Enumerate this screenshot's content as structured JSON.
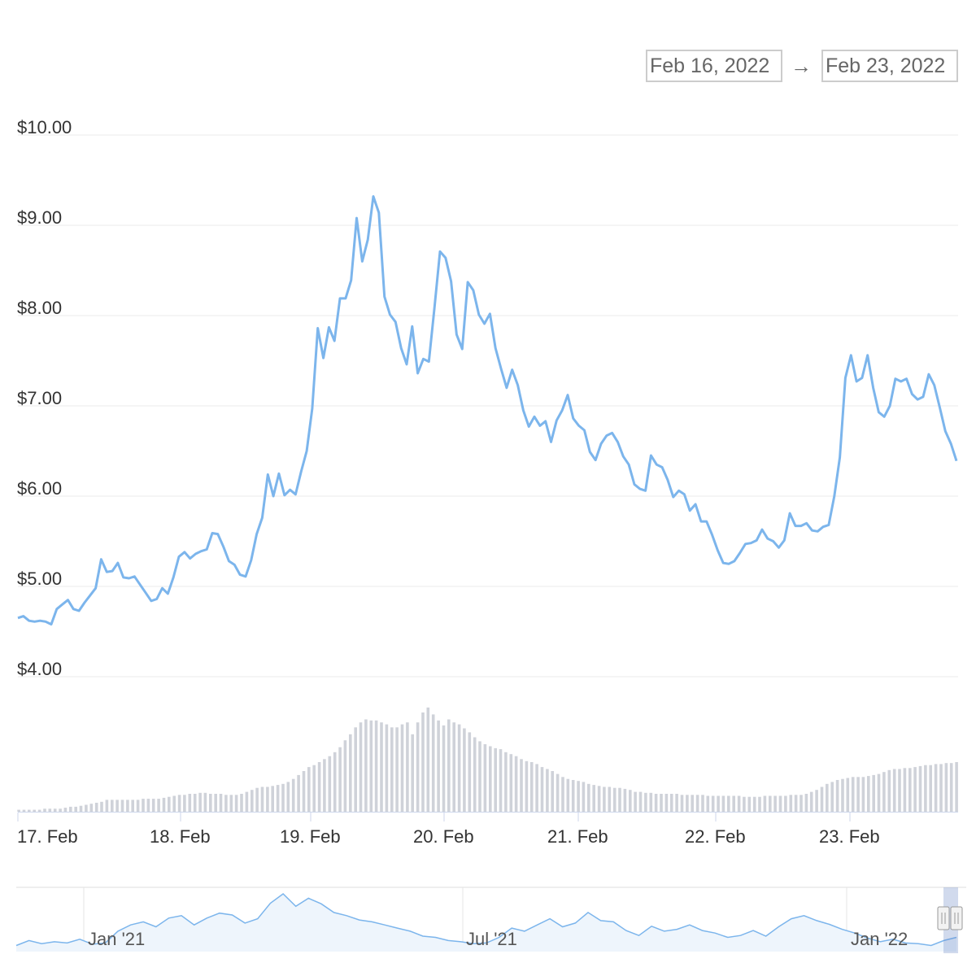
{
  "range": {
    "from": "Feb 16, 2022",
    "separator": "→",
    "to": "Feb 23, 2022"
  },
  "chart_data": {
    "type": "line",
    "y_axis": {
      "labels": [
        "$10.00",
        "$9.00",
        "$8.00",
        "$7.00",
        "$6.00",
        "$5.00",
        "$4.00"
      ],
      "ylim": [
        4,
        10
      ],
      "grid": true
    },
    "x_axis": {
      "labels": [
        "17. Feb",
        "18. Feb",
        "19. Feb",
        "20. Feb",
        "21. Feb",
        "22. Feb",
        "23. Feb"
      ]
    },
    "price_series": {
      "x_range": [
        "2022-02-16T21:00",
        "2022-02-23T20:00"
      ],
      "values": [
        4.65,
        4.67,
        4.62,
        4.61,
        4.62,
        4.61,
        4.58,
        4.75,
        4.8,
        4.85,
        4.75,
        4.73,
        4.82,
        4.9,
        4.98,
        5.3,
        5.16,
        5.17,
        5.26,
        5.1,
        5.09,
        5.11,
        5.02,
        4.93,
        4.84,
        4.86,
        4.98,
        4.92,
        5.1,
        5.33,
        5.38,
        5.31,
        5.36,
        5.39,
        5.41,
        5.59,
        5.58,
        5.44,
        5.28,
        5.24,
        5.13,
        5.11,
        5.29,
        5.58,
        5.76,
        6.24,
        6.0,
        6.25,
        6.01,
        6.07,
        6.02,
        6.27,
        6.5,
        6.97,
        7.86,
        7.53,
        7.87,
        7.72,
        8.19,
        8.19,
        8.39,
        9.08,
        8.6,
        8.84,
        9.32,
        9.14,
        8.21,
        8.01,
        7.93,
        7.64,
        7.46,
        7.88,
        7.36,
        7.52,
        7.49,
        8.08,
        8.71,
        8.64,
        8.38,
        7.79,
        7.63,
        8.37,
        8.28,
        8.01,
        7.91,
        8.02,
        7.64,
        7.41,
        7.2,
        7.4,
        7.23,
        6.95,
        6.77,
        6.88,
        6.78,
        6.83,
        6.6,
        6.84,
        6.95,
        7.12,
        6.86,
        6.78,
        6.73,
        6.49,
        6.4,
        6.58,
        6.67,
        6.7,
        6.6,
        6.44,
        6.35,
        6.13,
        6.08,
        6.06,
        6.45,
        6.35,
        6.32,
        6.18,
        5.99,
        6.06,
        6.02,
        5.84,
        5.91,
        5.72,
        5.72,
        5.57,
        5.4,
        5.26,
        5.25,
        5.28,
        5.37,
        5.47,
        5.48,
        5.51,
        5.63,
        5.53,
        5.5,
        5.43,
        5.51,
        5.81,
        5.67,
        5.67,
        5.7,
        5.62,
        5.61,
        5.66,
        5.68,
        6.0,
        6.43,
        7.31,
        7.56,
        7.27,
        7.31,
        7.56,
        7.2,
        6.93,
        6.88,
        7.0,
        7.3,
        7.27,
        7.3,
        7.13,
        7.07,
        7.1,
        7.35,
        7.23,
        6.98,
        6.72,
        6.58,
        6.39
      ]
    },
    "volume_series": {
      "values": [
        2,
        2,
        2,
        2,
        2,
        3,
        3,
        3,
        3,
        4,
        5,
        5,
        6,
        7,
        8,
        9,
        10,
        12,
        12,
        12,
        12,
        12,
        12,
        12,
        13,
        13,
        13,
        13,
        14,
        15,
        16,
        17,
        17,
        18,
        18,
        19,
        19,
        18,
        18,
        18,
        17,
        17,
        17,
        18,
        20,
        22,
        24,
        25,
        25,
        26,
        27,
        28,
        30,
        33,
        37,
        41,
        45,
        47,
        50,
        53,
        56,
        60,
        65,
        72,
        78,
        85,
        90,
        93,
        92,
        92,
        90,
        88,
        85,
        85,
        88,
        90,
        78,
        90,
        100,
        105,
        98,
        92,
        87,
        93,
        90,
        88,
        84,
        80,
        75,
        71,
        68,
        66,
        64,
        63,
        60,
        58,
        56,
        53,
        51,
        50,
        48,
        45,
        43,
        41,
        38,
        35,
        33,
        32,
        31,
        30,
        28,
        27,
        26,
        25,
        25,
        24,
        24,
        23,
        22,
        20,
        20,
        19,
        19,
        18,
        18,
        18,
        18,
        18,
        17,
        17,
        17,
        17,
        17,
        16,
        16,
        16,
        16,
        16,
        16,
        16,
        15,
        15,
        15,
        15,
        16,
        16,
        16,
        16,
        16,
        17,
        17,
        17,
        18,
        20,
        22,
        25,
        28,
        30,
        32,
        33,
        34,
        35,
        35,
        35,
        36,
        37,
        38,
        40,
        42,
        43,
        43,
        44,
        44,
        45,
        46,
        47,
        47,
        48,
        48,
        49,
        49,
        50
      ]
    },
    "navigator": {
      "x_labels": [
        "Jan '21",
        "Jul '21",
        "Jan '22"
      ],
      "values": [
        3.2,
        4.0,
        3.5,
        3.8,
        3.6,
        4.2,
        3.4,
        3.6,
        5.5,
        6.5,
        7.0,
        6.2,
        7.6,
        8.0,
        6.5,
        7.6,
        8.4,
        8.1,
        6.8,
        7.5,
        10.0,
        11.5,
        9.5,
        10.8,
        9.9,
        8.5,
        8.0,
        7.3,
        7.0,
        6.5,
        6.0,
        5.5,
        4.7,
        4.5,
        4.0,
        3.8,
        3.5,
        3.6,
        4.5,
        6.0,
        5.5,
        6.5,
        7.5,
        6.2,
        6.8,
        8.5,
        7.2,
        7.0,
        5.6,
        4.8,
        6.3,
        5.5,
        5.8,
        6.5,
        5.6,
        5.2,
        4.5,
        4.8,
        5.6,
        4.7,
        6.2,
        7.5,
        8.0,
        7.2,
        6.6,
        5.8,
        5.2,
        4.4,
        3.8,
        4.2,
        3.6,
        3.5,
        3.2,
        4.0,
        4.5
      ]
    }
  }
}
